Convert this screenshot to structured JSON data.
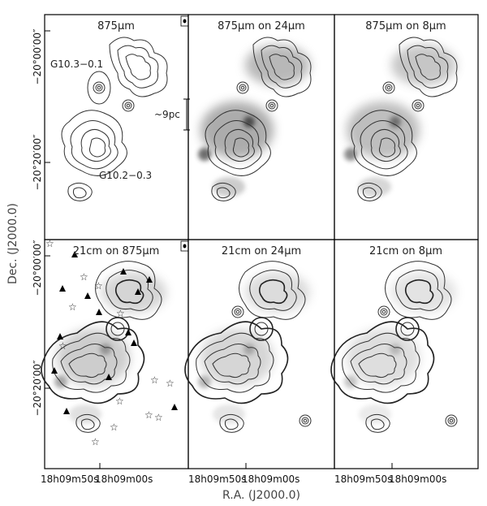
{
  "figure": {
    "panels": [
      {
        "id": "p1",
        "title": "875µm",
        "background": "none"
      },
      {
        "id": "p2",
        "title": "875µm on 24µm",
        "background": "24um"
      },
      {
        "id": "p3",
        "title": "875µm on 8µm",
        "background": "8um"
      },
      {
        "id": "p4",
        "title": "21cm on 875µm",
        "background": "875um"
      },
      {
        "id": "p5",
        "title": "21cm on 24µm",
        "background": "24um"
      },
      {
        "id": "p6",
        "title": "21cm on 8µm",
        "background": "8um"
      }
    ],
    "annotations": {
      "region_north": "G10.3−0.1",
      "region_south": "G10.2−0.3",
      "scale_bar": "~9pc"
    },
    "y_axis": {
      "label": "Dec. (J2000.0)",
      "ticks_top_row": [
        "−20°00′00″",
        "−20°20′00″"
      ],
      "ticks_bottom_row": [
        "−20°00′00″",
        "−20°20′00″"
      ]
    },
    "x_axis": {
      "label": "R.A. (J2000.0)",
      "ticks_left": [
        "18h09m50s",
        "18h09m00s"
      ],
      "ticks_mid": [
        "18h09m50s",
        "18h09m00s"
      ],
      "ticks_right": [
        "18h09m50s",
        "18h09m00s"
      ]
    },
    "colors": {
      "frame": "#000000",
      "contour": "#333333",
      "background_emission": "#9a9a9a"
    }
  }
}
